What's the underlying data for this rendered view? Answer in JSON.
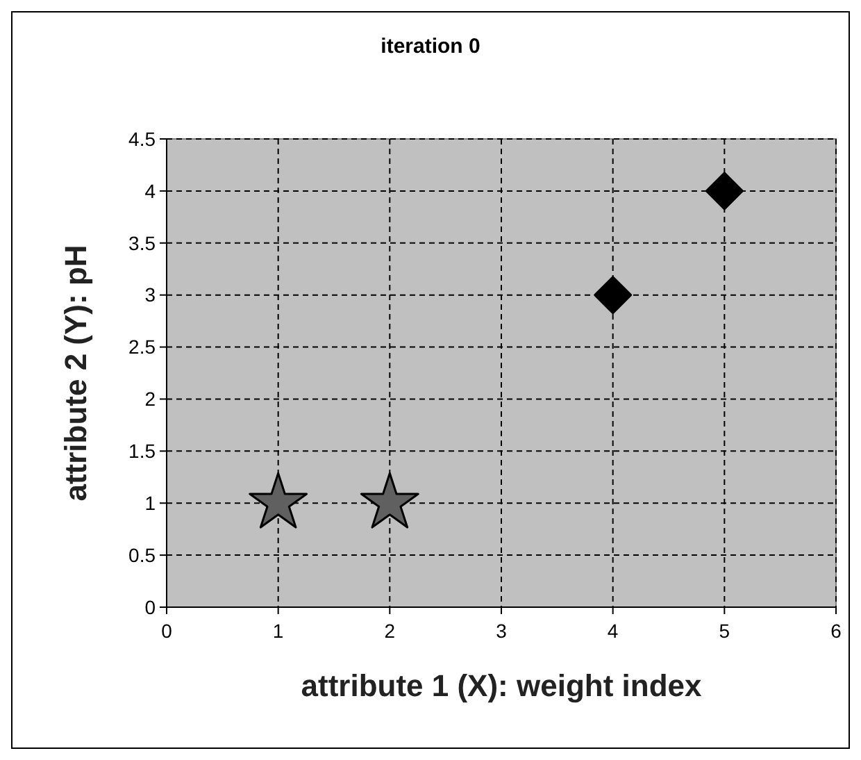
{
  "chart_data": {
    "type": "scatter",
    "title": "iteration 0",
    "xlabel": "attribute 1 (X): weight index",
    "ylabel": "attribute 2 (Y): pH",
    "xlim": [
      0,
      6
    ],
    "xticks": [
      0,
      1,
      2,
      3,
      4,
      5,
      6
    ],
    "ylim": [
      0,
      4.5
    ],
    "yticks": [
      0,
      0.5,
      1,
      1.5,
      2,
      2.5,
      3,
      3.5,
      4,
      4.5
    ],
    "grid": true,
    "series": [
      {
        "color": "#606060",
        "marker": "star",
        "x": [
          1,
          2
        ],
        "values": [
          1,
          1
        ]
      },
      {
        "color": "#000000",
        "marker": "diamond",
        "x": [
          4,
          5
        ],
        "values": [
          3,
          4
        ]
      }
    ]
  }
}
